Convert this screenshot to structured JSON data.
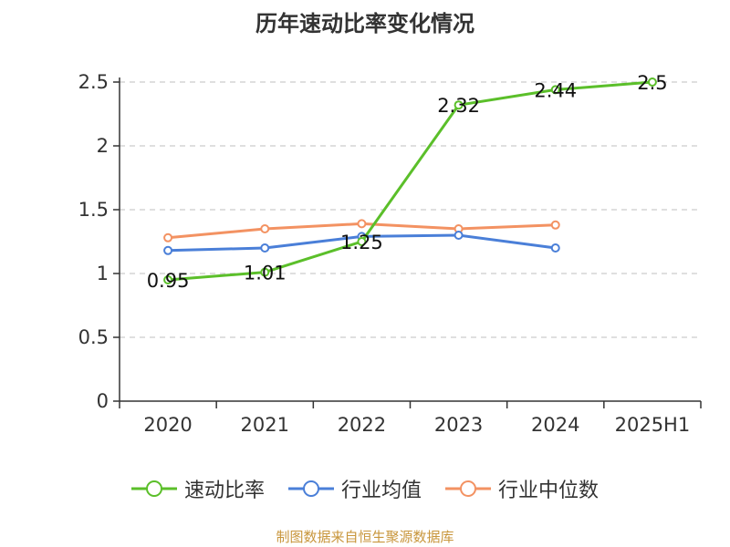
{
  "title": "历年速动比率变化情况",
  "source": "制图数据来自恒生聚源数据库",
  "chart_data": {
    "type": "line",
    "categories": [
      "2020",
      "2021",
      "2022",
      "2023",
      "2024",
      "2025H1"
    ],
    "y_ticks": [
      "0",
      "0.5",
      "1",
      "1.5",
      "2",
      "2.5"
    ],
    "ylim": [
      0,
      2.5
    ],
    "grid": true,
    "legend_position": "bottom",
    "series": [
      {
        "name": "速动比率",
        "color": "#5bbf2a",
        "values": [
          0.95,
          1.01,
          1.25,
          2.32,
          2.44,
          2.5
        ],
        "labels": [
          "0.95",
          "1.01",
          "1.25",
          "2.32",
          "2.44",
          "2.5"
        ]
      },
      {
        "name": "行业均值",
        "color": "#4a7fd8",
        "values": [
          1.18,
          1.2,
          1.29,
          1.3,
          1.2,
          null
        ]
      },
      {
        "name": "行业中位数",
        "color": "#f39262",
        "values": [
          1.28,
          1.35,
          1.39,
          1.35,
          1.38,
          null
        ]
      }
    ]
  }
}
